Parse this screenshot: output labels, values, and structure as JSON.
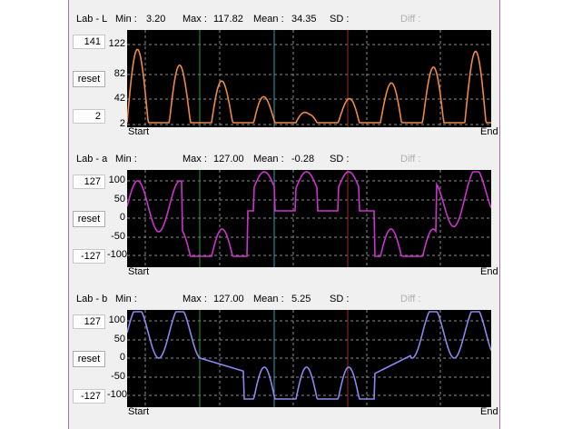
{
  "panels": [
    {
      "title": "Lab - L",
      "min_label": "Min :",
      "min_value": "3.20",
      "max_label": "Max :",
      "max_value": "117.82",
      "mean_label": "Mean :",
      "mean_value": "34.35",
      "sd_label": "SD :",
      "diff_label": "Diff :",
      "upper_value": "141",
      "lower_value": "2",
      "reset_label": "reset",
      "ticks": [
        "122",
        "82",
        "42",
        "2"
      ],
      "x_start": "Start",
      "x_end": "End",
      "color": "#ee8844"
    },
    {
      "title": "Lab - a",
      "min_label": "Min :",
      "min_value": "",
      "max_label": "Max :",
      "max_value": "127.00",
      "mean_label": "Mean :",
      "mean_value": "-0.28",
      "sd_label": "SD :",
      "diff_label": "Diff :",
      "upper_value": "127",
      "lower_value": "-127",
      "reset_label": "reset",
      "ticks": [
        "100",
        "50",
        "0",
        "-50",
        "-100"
      ],
      "x_start": "Start",
      "x_end": "End",
      "color": "#cc33cc"
    },
    {
      "title": "Lab - b",
      "min_label": "Min :",
      "min_value": "",
      "max_label": "Max :",
      "max_value": "127.00",
      "mean_label": "Mean :",
      "mean_value": "5.25",
      "sd_label": "SD :",
      "diff_label": "Diff :",
      "upper_value": "127",
      "lower_value": "-127",
      "reset_label": "reset",
      "ticks": [
        "100",
        "50",
        "0",
        "-50",
        "-100"
      ],
      "x_start": "Start",
      "x_end": "End",
      "color": "#8888ee"
    }
  ],
  "marker_colors": [
    "#2e9a2e",
    "#2aa0b0",
    "#a02828"
  ]
}
